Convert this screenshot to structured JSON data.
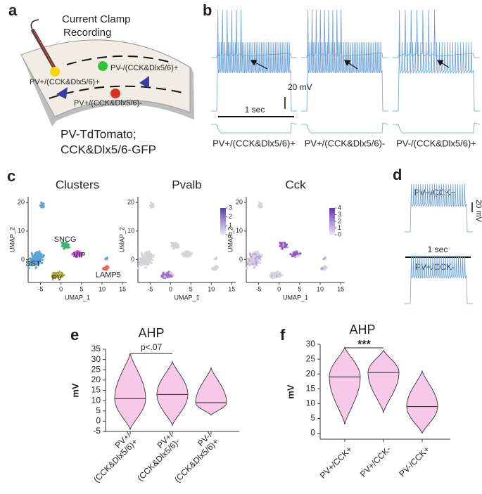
{
  "panel_labels": [
    "a",
    "b",
    "c",
    "d",
    "e",
    "f"
  ],
  "panel_a": {
    "recording": [
      "Current Clamp",
      "Recording"
    ],
    "cells": [
      "PV+/(CCK&Dlx5/6)+",
      "PV-/(CCK&Dlx5/6)+",
      "PV+/(CCK&Dlx5/6)-"
    ],
    "mouse": [
      "PV-TdTomato;",
      "CCK&Dlx5/6-GFP"
    ]
  },
  "panel_b": {
    "voltage_scale": "20 mV",
    "time_scale": "1 sec",
    "columns": [
      "PV+/(CCK&Dlx5/6)+",
      "PV+/(CCK&Dlx5/6)-",
      "PV-/(CCK&Dlx5/6)+"
    ]
  },
  "panel_d": {
    "traces": [
      "PV+/CCK+",
      "PV+/CCK-"
    ],
    "voltage_scale": "20 mV",
    "time_scale": "1 sec"
  },
  "chart_data": [
    {
      "type": "scatter",
      "title": "Clusters",
      "xlabel": "UMAP_1",
      "ylabel": "UMAP_2",
      "xlim": [
        -8,
        16
      ],
      "ylim": [
        -8,
        22
      ],
      "xticks": [
        -5,
        0,
        5,
        10,
        15
      ],
      "yticks": [
        0,
        10,
        20
      ],
      "clusters": [
        "SST",
        "SNCG",
        "VIP",
        "LAMP5",
        "PV"
      ],
      "colors": [
        "#5aa3d9",
        "#3cb371",
        "#c54ed6",
        "#f0645a",
        "#a8a832"
      ]
    },
    {
      "type": "scatter",
      "title": "Pvalb",
      "xlabel": "UMAP_1",
      "ylabel": "UMAP_2",
      "xlim": [
        -8,
        16
      ],
      "ylim": [
        -8,
        22
      ],
      "xticks": [
        -5,
        0,
        5,
        10,
        15
      ],
      "yticks": [
        0,
        10,
        20
      ],
      "colorbar_ticks": [
        0,
        1,
        2,
        3
      ]
    },
    {
      "type": "scatter",
      "title": "Cck",
      "xlabel": "UMAP_1",
      "ylabel": "UMAP_2",
      "xlim": [
        -8,
        16
      ],
      "ylim": [
        -8,
        22
      ],
      "xticks": [
        -5,
        0,
        5,
        10,
        15
      ],
      "yticks": [
        0,
        10,
        20
      ],
      "colorbar_ticks": [
        0,
        1,
        2,
        3,
        4
      ]
    },
    {
      "type": "violin",
      "title": "AHP",
      "ylabel": "mV",
      "categories": [
        [
          "PV+/",
          "(CCK&Dlx5/6)+"
        ],
        [
          "PV+/",
          "(CCK&Dlx5/6)-"
        ],
        [
          "PV-/",
          "(CCK&Dlx5/6)+"
        ]
      ],
      "values": [
        11,
        13,
        9
      ],
      "min": [
        -4,
        -2,
        3
      ],
      "max": [
        33,
        29,
        26
      ],
      "ylim": [
        -5,
        35
      ],
      "yticks": [
        -5,
        0,
        5,
        10,
        15,
        20,
        25,
        30,
        35
      ],
      "annotation": "p<.07",
      "color": "#f8c8e8"
    },
    {
      "type": "violin",
      "title": "AHP",
      "ylabel": "mV",
      "categories": [
        [
          "PV+/CCK+"
        ],
        [
          "PV+/CCK-"
        ],
        [
          "PV-/CCK+"
        ]
      ],
      "values": [
        19,
        20.5,
        9
      ],
      "min": [
        3,
        7,
        0
      ],
      "max": [
        29,
        28,
        21
      ],
      "ylim": [
        -2,
        30
      ],
      "yticks": [
        0,
        5,
        10,
        15,
        20,
        25,
        30
      ],
      "annotation": "***",
      "color": "#f8c8e8"
    }
  ]
}
